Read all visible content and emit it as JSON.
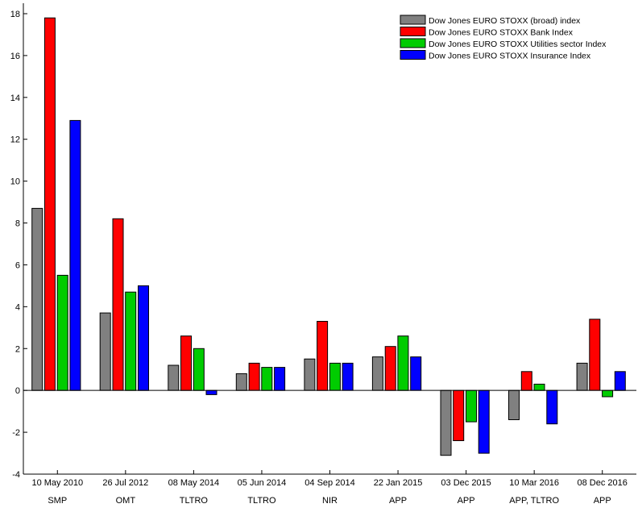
{
  "chart_data": {
    "type": "bar",
    "categories": [
      "10 May 2010",
      "26 Jul 2012",
      "08 May 2014",
      "05 Jun 2014",
      "04 Sep 2014",
      "22 Jan 2015",
      "03 Dec 2015",
      "10 Mar 2016",
      "08 Dec 2016"
    ],
    "category_labels": [
      "SMP",
      "OMT",
      "TLTRO",
      "TLTRO",
      "NIR",
      "APP",
      "APP",
      "APP, TLTRO",
      "APP"
    ],
    "series": [
      {
        "name": "Dow Jones EURO STOXX (broad) index",
        "color": "#808080",
        "values": [
          8.7,
          3.7,
          1.2,
          0.8,
          1.5,
          1.6,
          -3.1,
          -1.4,
          1.3
        ]
      },
      {
        "name": "Dow Jones EURO STOXX Bank Index",
        "color": "#ff0000",
        "values": [
          17.8,
          8.2,
          2.6,
          1.3,
          3.3,
          2.1,
          -2.4,
          0.9,
          3.4
        ]
      },
      {
        "name": "Dow Jones EURO STOXX Utilities sector Index",
        "color": "#00cc00",
        "values": [
          5.5,
          4.7,
          2.0,
          1.1,
          1.3,
          2.6,
          -1.5,
          0.3,
          -0.3
        ]
      },
      {
        "name": "Dow Jones EURO STOXX Insurance Index",
        "color": "#0000ff",
        "values": [
          12.9,
          5.0,
          -0.2,
          1.1,
          1.3,
          1.6,
          -3.0,
          -1.6,
          0.9
        ]
      }
    ],
    "ylim": [
      -4,
      18.5
    ],
    "yticks": [
      -4,
      -2,
      0,
      2,
      4,
      6,
      8,
      10,
      12,
      14,
      16,
      18
    ],
    "legend_position": "top-right",
    "grid": false
  }
}
